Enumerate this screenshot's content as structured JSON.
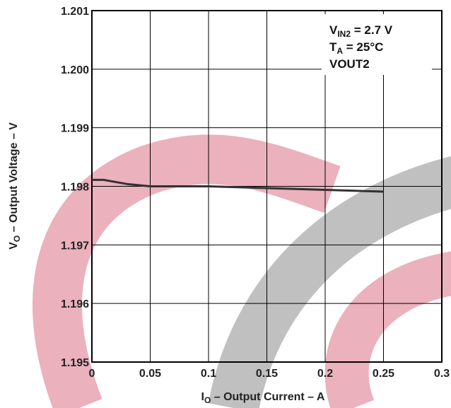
{
  "chart_data": {
    "type": "line",
    "title": "",
    "xlabel": {
      "main": "I",
      "sub": "O",
      "rest": " – Output Current – A"
    },
    "ylabel": {
      "main": "V",
      "sub": "O",
      "rest": " – Output Voltage – V"
    },
    "xlim": [
      0,
      0.3
    ],
    "ylim": [
      1.195,
      1.201
    ],
    "x_ticks": [
      0,
      0.05,
      0.1,
      0.15,
      0.2,
      0.25,
      0.3
    ],
    "x_tick_labels": [
      "0",
      "0.05",
      "0.1",
      "0.15",
      "0.2",
      "0.25",
      "0.3"
    ],
    "y_ticks": [
      1.195,
      1.196,
      1.197,
      1.198,
      1.199,
      1.2,
      1.201
    ],
    "y_tick_labels": [
      "1.195",
      "1.196",
      "1.197",
      "1.198",
      "1.199",
      "1.200",
      "1.201"
    ],
    "grid": true,
    "annotations": [
      {
        "main": "V",
        "sub": "IN2",
        "rest": " = 2.7 V"
      },
      {
        "main": "T",
        "sub": "A",
        "rest": " = 25°C"
      },
      {
        "main": "VOUT2",
        "sub": "",
        "rest": ""
      }
    ],
    "series": [
      {
        "color": "#333333",
        "x": [
          0,
          0.01,
          0.03,
          0.05,
          0.1,
          0.15,
          0.2,
          0.25
        ],
        "y": [
          1.19811,
          1.19811,
          1.19804,
          1.198,
          1.198,
          1.19797,
          1.19794,
          1.19791
        ]
      }
    ]
  }
}
